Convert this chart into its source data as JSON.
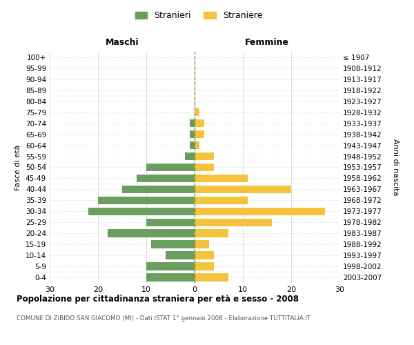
{
  "age_groups": [
    "100+",
    "95-99",
    "90-94",
    "85-89",
    "80-84",
    "75-79",
    "70-74",
    "65-69",
    "60-64",
    "55-59",
    "50-54",
    "45-49",
    "40-44",
    "35-39",
    "30-34",
    "25-29",
    "20-24",
    "15-19",
    "10-14",
    "5-9",
    "0-4"
  ],
  "birth_years": [
    "≤ 1907",
    "1908-1912",
    "1913-1917",
    "1918-1922",
    "1923-1927",
    "1928-1932",
    "1933-1937",
    "1938-1942",
    "1943-1947",
    "1948-1952",
    "1953-1957",
    "1958-1962",
    "1963-1967",
    "1968-1972",
    "1973-1977",
    "1978-1982",
    "1983-1987",
    "1988-1992",
    "1993-1997",
    "1998-2002",
    "2003-2007"
  ],
  "maschi": [
    0,
    0,
    0,
    0,
    0,
    0,
    1,
    1,
    1,
    2,
    10,
    12,
    15,
    20,
    22,
    10,
    18,
    9,
    6,
    10,
    10
  ],
  "femmine": [
    0,
    0,
    0,
    0,
    0,
    1,
    2,
    2,
    1,
    4,
    4,
    11,
    20,
    11,
    27,
    16,
    7,
    3,
    4,
    4,
    7
  ],
  "male_color": "#6a9e5f",
  "female_color": "#f5c33b",
  "center_line_color": "#8b8b3a",
  "grid_color": "#dddddd",
  "bg_color": "#ffffff",
  "title": "Popolazione per cittadinanza straniera per età e sesso - 2008",
  "subtitle": "COMUNE DI ZIBIDO SAN GIACOMO (MI) - Dati ISTAT 1° gennaio 2008 - Elaborazione TUTTITALIA.IT",
  "xlabel_left": "Maschi",
  "xlabel_right": "Femmine",
  "ylabel_left": "Fasce di età",
  "ylabel_right": "Anni di nascita",
  "legend_male": "Stranieri",
  "legend_female": "Straniere",
  "xlim": 30
}
